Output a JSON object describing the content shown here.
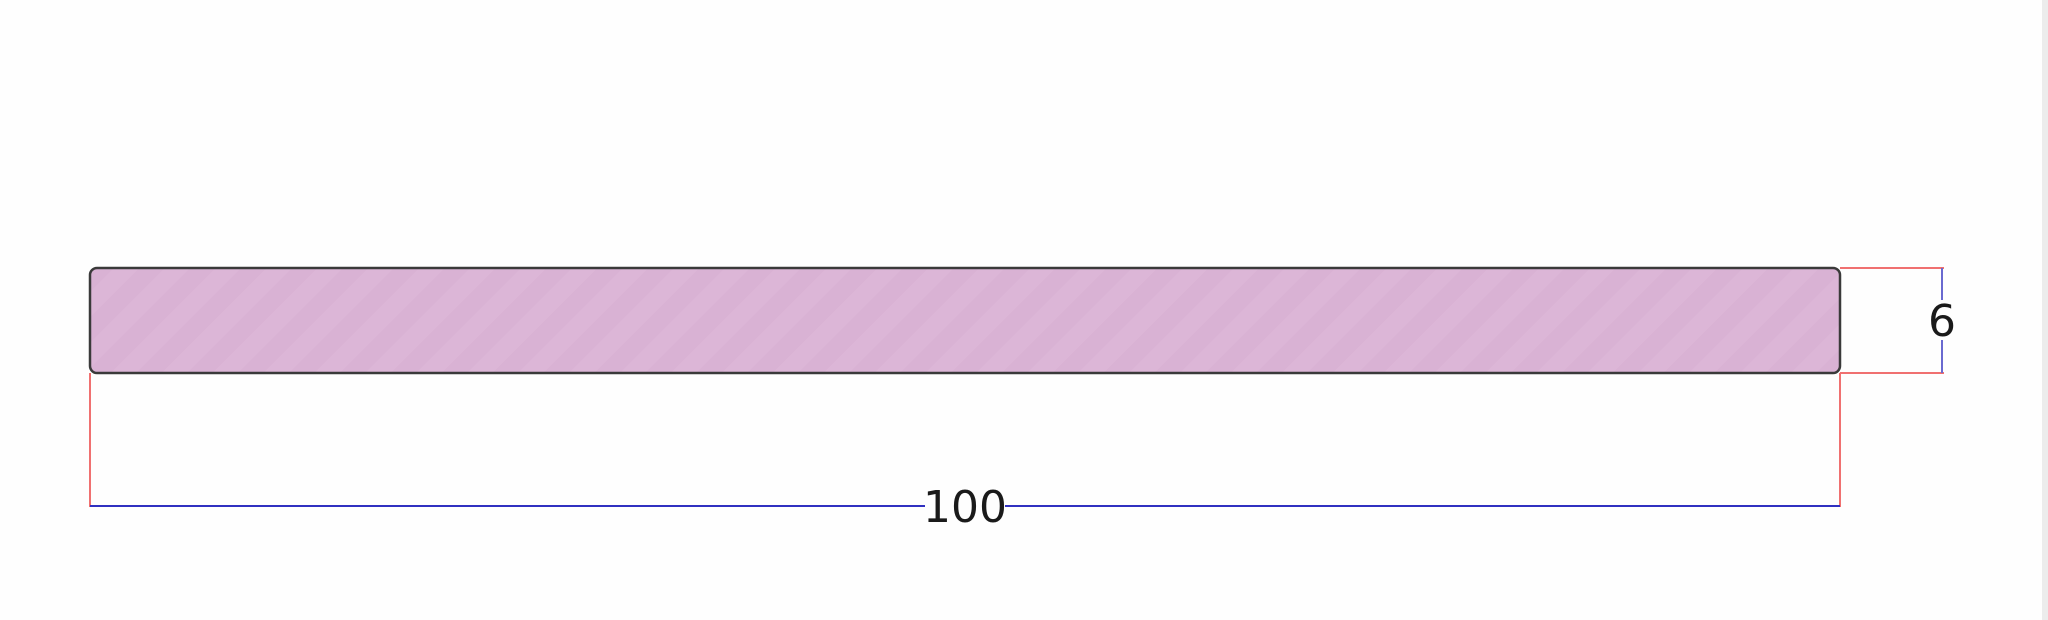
{
  "drawing": {
    "part": {
      "fill_color": "#dcb6d7",
      "stroke_color": "#3a3a3a"
    },
    "dimensions": {
      "width": {
        "label": "100",
        "value": 100
      },
      "height": {
        "label": "6",
        "value": 6
      }
    },
    "colors": {
      "extension_line": "#f06060",
      "dimension_line": "#3030c0"
    }
  }
}
